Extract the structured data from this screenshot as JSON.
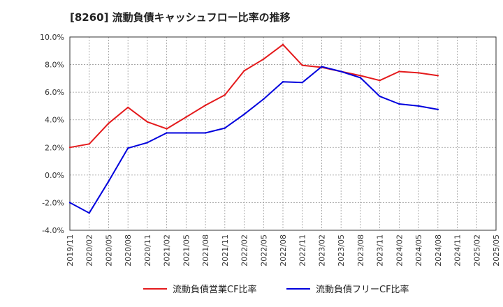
{
  "chart_data": {
    "type": "line",
    "title": "[8260]  流動負債キャッシュフロー比率の推移",
    "x": [
      "2019/11",
      "2020/02",
      "2020/05",
      "2020/08",
      "2020/11",
      "2021/02",
      "2021/05",
      "2021/08",
      "2021/11",
      "2022/02",
      "2022/05",
      "2022/08",
      "2022/11",
      "2023/02",
      "2023/05",
      "2023/08",
      "2023/11",
      "2024/02",
      "2024/05",
      "2024/08",
      "2024/11",
      "2025/02",
      "2025/05"
    ],
    "ylim": [
      -4.0,
      10.0
    ],
    "yticks": [
      "10.0%",
      "8.0%",
      "6.0%",
      "4.0%",
      "2.0%",
      "0.0%",
      "-2.0%",
      "-4.0%"
    ],
    "ytick_values": [
      10,
      8,
      6,
      4,
      2,
      0,
      -2,
      -4
    ],
    "grid": true,
    "legend_position": "bottom",
    "series": [
      {
        "name": "流動負債営業CF比率",
        "color": "#e41a1c",
        "values": [
          2.0,
          2.25,
          3.75,
          4.9,
          3.85,
          3.35,
          4.2,
          5.05,
          5.8,
          7.55,
          8.4,
          9.45,
          7.95,
          7.8,
          7.5,
          7.2,
          6.85,
          7.5,
          7.4,
          7.2,
          null,
          null,
          null
        ]
      },
      {
        "name": "流動負債フリーCF比率",
        "color": "#0000dd",
        "values": [
          -2.0,
          -2.75,
          -0.45,
          1.95,
          2.35,
          3.05,
          3.05,
          3.05,
          3.4,
          4.4,
          5.5,
          6.75,
          6.7,
          7.85,
          7.5,
          7.05,
          5.7,
          5.15,
          5.0,
          4.75,
          null,
          null,
          null
        ]
      }
    ]
  }
}
